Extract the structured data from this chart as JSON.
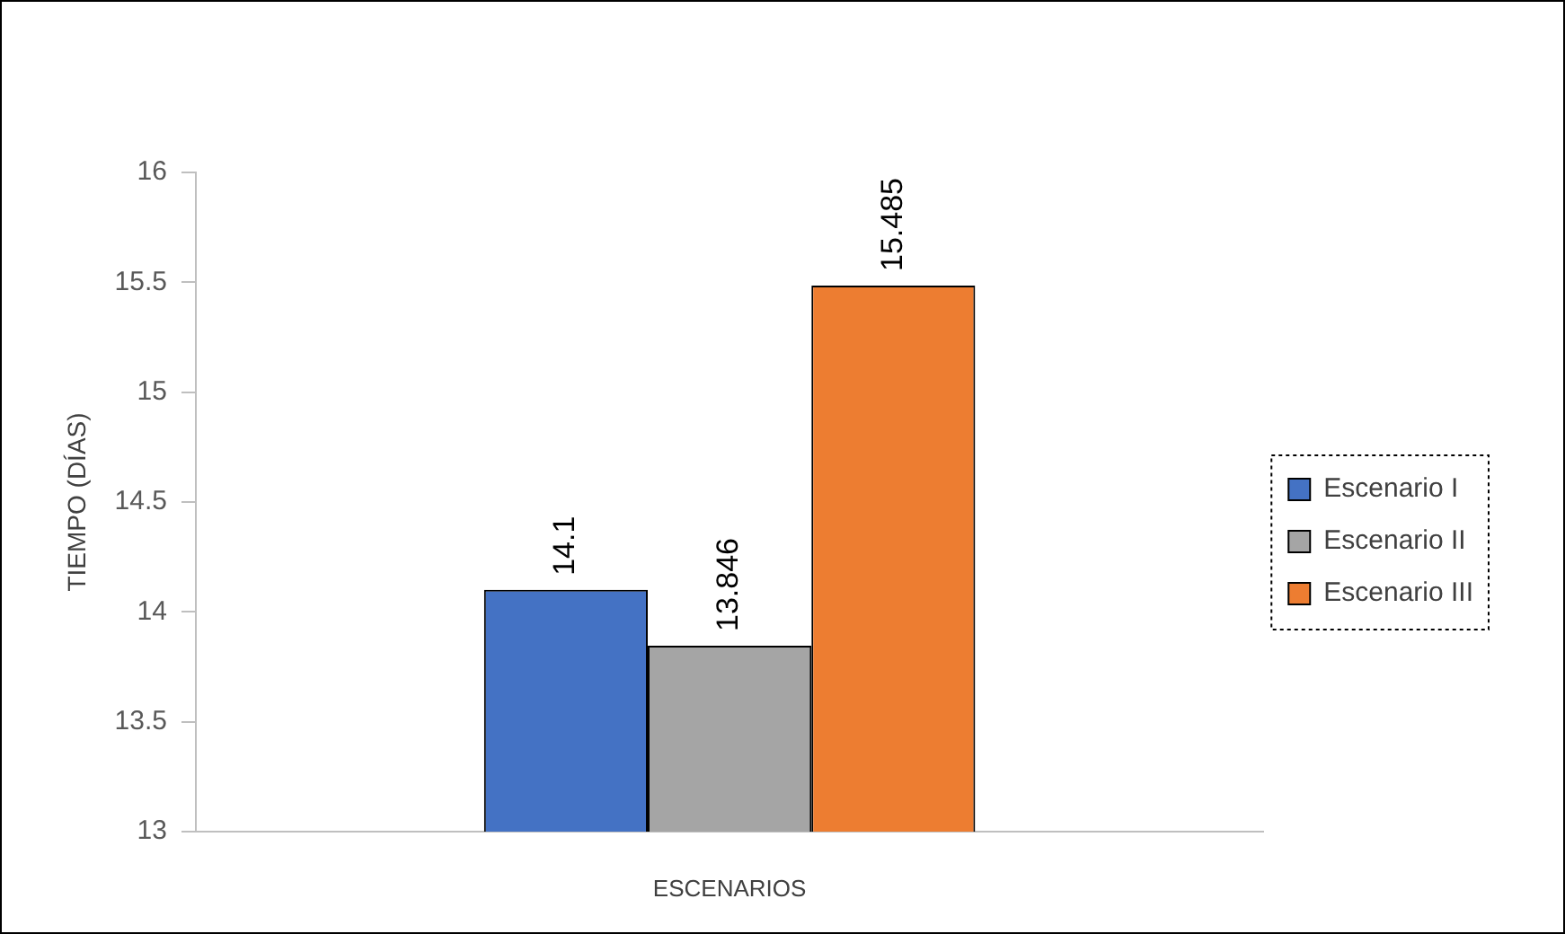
{
  "chart_data": {
    "type": "bar",
    "xlabel": "ESCENARIOS",
    "ylabel": "TIEMPO (DÍAS)",
    "categories": [
      null
    ],
    "series": [
      {
        "name": "Escenario I",
        "color": "#4472c4",
        "values": [
          14.1
        ]
      },
      {
        "name": "Escenario II",
        "color": "#a5a5a5",
        "values": [
          13.846
        ]
      },
      {
        "name": "Escenario III",
        "color": "#ed7d31",
        "values": [
          15.485
        ]
      }
    ],
    "ylim": [
      13,
      16
    ],
    "yticks": [
      13,
      13.5,
      14,
      14.5,
      15,
      15.5,
      16
    ],
    "grid": false,
    "legend": "right",
    "data_labels": true
  }
}
